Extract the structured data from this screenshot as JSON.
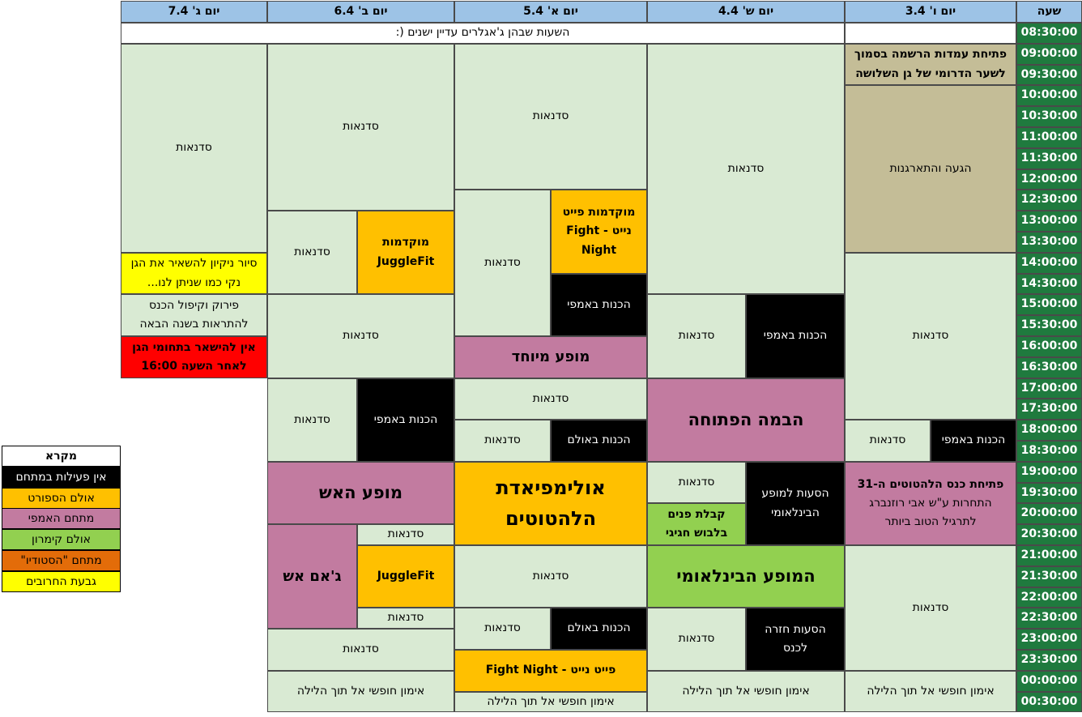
{
  "colors": {
    "header": "#9dc3e6",
    "time": "#1f7a3e",
    "regular": "#d9ead3",
    "tan": "#c4bd97",
    "black": "#000000",
    "amphi": "#c27ba0",
    "sport": "#ffc000",
    "kimron": "#92d050",
    "studio": "#e36c09",
    "hill": "#ffff00",
    "red": "#ff0000",
    "white": "#ffffff"
  },
  "headers": {
    "hour": "שעה",
    "fri": "יום ו' 3.4",
    "sat": "יום ש' 4.4",
    "sun": "יום א'  5.4",
    "mon": "יום ב' 6.4",
    "tue": "יום ג'  7.4"
  },
  "times": [
    "08:30:00",
    "09:00:00",
    "09:30:00",
    "10:00:00",
    "10:30:00",
    "11:00:00",
    "11:30:00",
    "12:00:00",
    "12:30:00",
    "13:00:00",
    "13:30:00",
    "14:00:00",
    "14:30:00",
    "15:00:00",
    "15:30:00",
    "16:00:00",
    "16:30:00",
    "17:00:00",
    "17:30:00",
    "18:00:00",
    "18:30:00",
    "19:00:00",
    "19:30:00",
    "20:00:00",
    "20:30:00",
    "21:00:00",
    "21:30:00",
    "22:00:00",
    "22:30:00",
    "23:00:00",
    "23:30:00",
    "00:00:00",
    "00:30:00"
  ],
  "cells": {
    "sleep": "השעות שבהן ג'אגלרים עדיין ישנים (:",
    "juggling": "סדנאות",
    "open_train": "אימון חופשי אל תוך הלילה",
    "fri_reg": "פתיחת עמדות הרשמה בסמוך\nלשער הדרומי של גן השלושה",
    "fri_arrive": "הגעה והתארגנות",
    "amphi_prep": "הכנות באמפי",
    "hall_prep": "הכנות באולם",
    "fri_open": "פתיחת כנס הלהטוטים ה-31",
    "fri_contest": "התחרות ע\"ש אבי רוזנברג\nלתרגיל הטוב ביותר",
    "sat_open_stage": "הבמה הפתוחה",
    "sat_shuttle": "הסעות למופע\nהבינלאומי",
    "sat_reception": "קבלת פנים\nבלבוש חגיגי",
    "sat_intl_show": "המופע הבינלאומי",
    "sat_return": "הסעות חזרה\nלכנס",
    "sun_fight_preview": "מוקדמות פייט\nנייט - Fight\nNight",
    "sun_special": "מופע מיוחד",
    "sun_olympiad": "אולימפיאדת\nהלהטוטים",
    "sun_fight_night": "פייט נייט - Fight Night",
    "mon_jf_preview": "מוקדמות\nJuggleFit",
    "mon_fire_show": "מופע האש",
    "mon_fire_jam": "ג'אם אש",
    "mon_jf": "JuggleFit",
    "tue_cleanup": "סיור ניקיון להשאיר את הגן\nנקי כמו שניתן לנו...",
    "tue_pack": "פירוק וקיפול הכנס\nלהתראות בשנה הבאה",
    "tue_leave": "אין להישאר בתחומי הגן\nלאחר השעה 16:00"
  },
  "legend": {
    "title": "מקרא",
    "items": [
      {
        "label": "אין פעילות במתחם",
        "color": "#000000",
        "text_color": "#ffffff"
      },
      {
        "label": "אולם הספורט",
        "color": "#ffc000",
        "text_color": "#000000"
      },
      {
        "label": "מתחם האמפי",
        "color": "#c27ba0",
        "text_color": "#000000"
      },
      {
        "label": "אולם קימרון",
        "color": "#92d050",
        "text_color": "#000000"
      },
      {
        "label": "מתחם \"הסטודיו\"",
        "color": "#e36c09",
        "text_color": "#000000"
      },
      {
        "label": "גבעת החרובים",
        "color": "#ffff00",
        "text_color": "#000000"
      }
    ]
  }
}
